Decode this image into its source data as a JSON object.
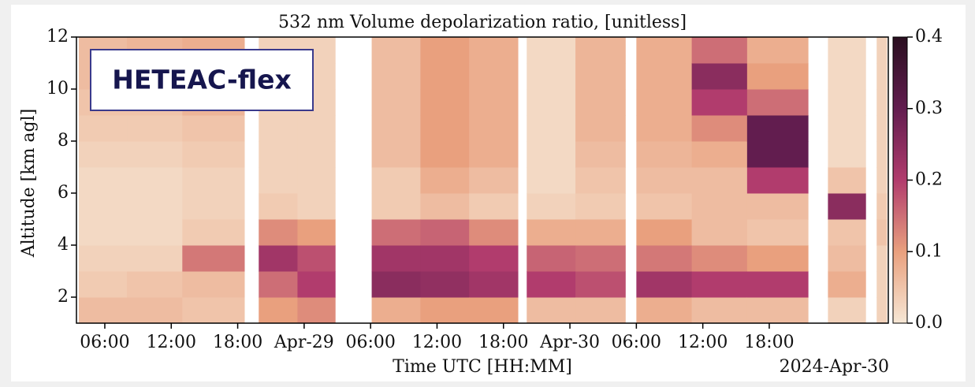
{
  "chart_data": {
    "type": "heatmap",
    "title": "532 nm Volume depolarization ratio, [unitless]",
    "x_label": "Time UTC [HH:MM]",
    "y_label": "Altitude [km agl]",
    "date_label": "2024-Apr-30",
    "annotation": "HETEAC-flex",
    "xlim": [
      3.44,
      76.75
    ],
    "ylim": [
      1,
      12
    ],
    "xticks": [
      {
        "value": 6,
        "label": "06:00"
      },
      {
        "value": 12,
        "label": "12:00"
      },
      {
        "value": 18,
        "label": "18:00"
      },
      {
        "value": 24,
        "label": "Apr-29"
      },
      {
        "value": 30,
        "label": "06:00"
      },
      {
        "value": 36,
        "label": "12:00"
      },
      {
        "value": 42,
        "label": "18:00"
      },
      {
        "value": 48,
        "label": "Apr-30"
      },
      {
        "value": 54,
        "label": "06:00"
      },
      {
        "value": 60,
        "label": "12:00"
      },
      {
        "value": 66,
        "label": "18:00"
      }
    ],
    "yticks": [
      2,
      4,
      6,
      8,
      10,
      12
    ],
    "clim": [
      0,
      0.4
    ],
    "cticks": [
      {
        "value": 0,
        "label": "0.0"
      },
      0.1,
      0.2,
      0.3,
      0.4
    ],
    "colormap": [
      "#f6e7d5",
      "#e9a07e",
      "#b13c6d",
      "#621d4f",
      "#2a0f20"
    ],
    "x_edges": [
      3.65,
      8,
      13,
      18.6,
      19.9,
      23.4,
      26.8,
      30.1,
      34.5,
      38.9,
      43.3,
      44.1,
      48.5,
      53,
      54,
      59,
      64,
      69.5,
      71.3,
      74.7,
      75.7,
      76.6
    ],
    "y_edges": [
      1,
      2,
      3,
      4,
      5,
      6,
      7,
      8,
      9,
      10,
      11,
      12
    ],
    "values": [
      [
        0.06,
        0.04,
        0.03,
        0.02,
        0.02,
        0.02,
        0.03,
        0.04,
        0.05,
        0.06,
        0.06
      ],
      [
        0.06,
        0.05,
        0.03,
        0.02,
        0.02,
        0.02,
        0.03,
        0.04,
        0.05,
        0.06,
        0.07
      ],
      [
        0.05,
        0.06,
        0.14,
        0.04,
        0.03,
        0.03,
        0.04,
        0.05,
        0.07,
        0.08,
        0.08
      ],
      null,
      [
        0.1,
        0.15,
        0.22,
        0.12,
        0.04,
        0.03,
        0.03,
        0.03,
        0.03,
        0.03,
        0.03
      ],
      [
        0.12,
        0.2,
        0.18,
        0.1,
        0.03,
        0.03,
        0.03,
        0.03,
        0.03,
        0.03,
        0.03
      ],
      null,
      [
        0.08,
        0.25,
        0.22,
        0.15,
        0.04,
        0.04,
        0.06,
        0.06,
        0.06,
        0.06,
        0.06
      ],
      [
        0.1,
        0.24,
        0.22,
        0.16,
        0.06,
        0.08,
        0.1,
        0.1,
        0.1,
        0.1,
        0.1
      ],
      [
        0.1,
        0.22,
        0.2,
        0.12,
        0.04,
        0.06,
        0.08,
        0.08,
        0.08,
        0.08,
        0.08
      ],
      null,
      [
        0.06,
        0.2,
        0.16,
        0.08,
        0.03,
        0.02,
        0.02,
        0.02,
        0.02,
        0.02,
        0.02
      ],
      [
        0.06,
        0.18,
        0.15,
        0.08,
        0.04,
        0.05,
        0.06,
        0.07,
        0.07,
        0.07,
        0.07
      ],
      null,
      [
        0.08,
        0.22,
        0.14,
        0.1,
        0.05,
        0.06,
        0.07,
        0.08,
        0.08,
        0.08,
        0.08
      ],
      [
        0.06,
        0.2,
        0.12,
        0.06,
        0.06,
        0.06,
        0.08,
        0.12,
        0.2,
        0.25,
        0.15
      ],
      [
        0.06,
        0.2,
        0.1,
        0.05,
        0.06,
        0.2,
        0.3,
        0.3,
        0.15,
        0.1,
        0.08
      ],
      null,
      [
        0.03,
        0.08,
        0.06,
        0.05,
        0.25,
        0.05,
        0.02,
        0.02,
        0.02,
        0.02,
        0.02
      ],
      null,
      [
        0.03,
        0.03,
        0.03,
        0.05,
        0.04,
        0.03,
        0.03,
        0.03,
        0.03,
        0.03,
        0.03
      ]
    ]
  }
}
